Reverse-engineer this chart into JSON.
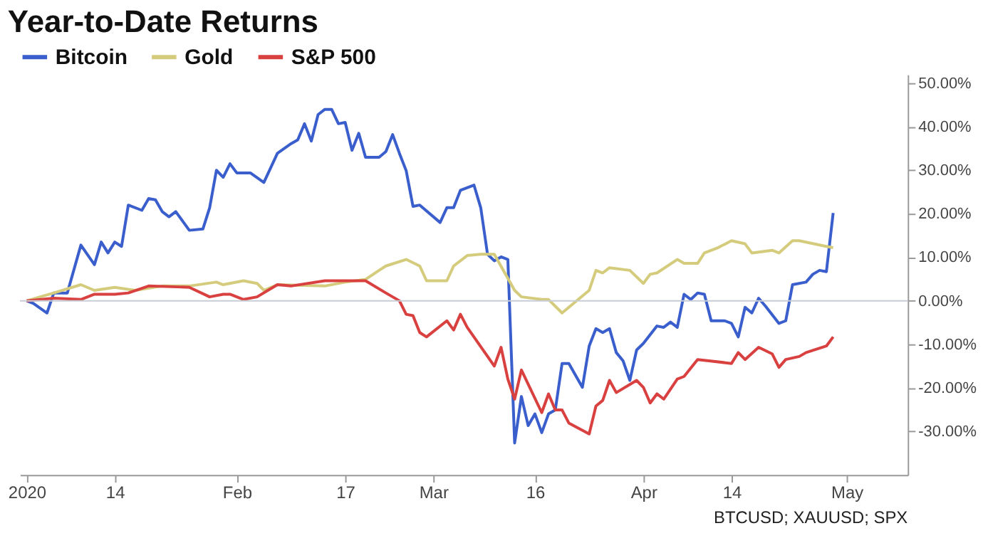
{
  "chart_data": {
    "type": "line",
    "title": "Year-to-Date Returns",
    "legend": "top left",
    "series": [
      {
        "name": "Bitcoin",
        "color": "#3a5fcd",
        "x": [
          "2020-01-01",
          "2020-01-02",
          "2020-01-04",
          "2020-01-05",
          "2020-01-07",
          "2020-01-09",
          "2020-01-11",
          "2020-01-12",
          "2020-01-13",
          "2020-01-14",
          "2020-01-15",
          "2020-01-16",
          "2020-01-18",
          "2020-01-19",
          "2020-01-20",
          "2020-01-21",
          "2020-01-22",
          "2020-01-23",
          "2020-01-25",
          "2020-01-27",
          "2020-01-28",
          "2020-01-29",
          "2020-01-30",
          "2020-01-31",
          "2020-02-01",
          "2020-02-03",
          "2020-02-05",
          "2020-02-07",
          "2020-02-09",
          "2020-02-10",
          "2020-02-11",
          "2020-02-12",
          "2020-02-13",
          "2020-02-14",
          "2020-02-15",
          "2020-02-16",
          "2020-02-17",
          "2020-02-18",
          "2020-02-19",
          "2020-02-20",
          "2020-02-22",
          "2020-02-23",
          "2020-02-24",
          "2020-02-25",
          "2020-02-26",
          "2020-02-27",
          "2020-02-28",
          "2020-03-02",
          "2020-03-03",
          "2020-03-04",
          "2020-03-05",
          "2020-03-07",
          "2020-03-08",
          "2020-03-09",
          "2020-03-10",
          "2020-03-11",
          "2020-03-12",
          "2020-03-13",
          "2020-03-14",
          "2020-03-15",
          "2020-03-16",
          "2020-03-17",
          "2020-03-18",
          "2020-03-19",
          "2020-03-20",
          "2020-03-21",
          "2020-03-23",
          "2020-03-24",
          "2020-03-25",
          "2020-03-26",
          "2020-03-27",
          "2020-03-28",
          "2020-03-29",
          "2020-03-30",
          "2020-03-31",
          "2020-04-01",
          "2020-04-03",
          "2020-04-04",
          "2020-04-05",
          "2020-04-06",
          "2020-04-07",
          "2020-04-08",
          "2020-04-09",
          "2020-04-10",
          "2020-04-11",
          "2020-04-13",
          "2020-04-14",
          "2020-04-15",
          "2020-04-16",
          "2020-04-17",
          "2020-04-18",
          "2020-04-19",
          "2020-04-21",
          "2020-04-22",
          "2020-04-23",
          "2020-04-25",
          "2020-04-26",
          "2020-04-27",
          "2020-04-28",
          "2020-04-29"
        ],
        "values": [
          0,
          -0.6,
          -2.8,
          1.8,
          1.8,
          12.8,
          8.3,
          13.5,
          11.0,
          13.5,
          12.5,
          22.0,
          20.8,
          23.5,
          23.2,
          20.5,
          19.3,
          20.5,
          16.2,
          16.5,
          21.4,
          30.0,
          28.4,
          31.5,
          29.4,
          29.4,
          27.2,
          33.9,
          36.1,
          37.0,
          40.7,
          36.7,
          42.8,
          44.0,
          44.0,
          40.7,
          41.0,
          34.6,
          38.5,
          33.0,
          33.0,
          34.3,
          38.2,
          33.9,
          29.9,
          21.7,
          22.0,
          18.0,
          21.4,
          21.4,
          25.4,
          26.6,
          21.4,
          10.7,
          9.2,
          10.1,
          9.5,
          -32.7,
          -22.0,
          -28.7,
          -26.0,
          -30.3,
          -26.0,
          -25.1,
          -14.4,
          -14.4,
          -19.9,
          -10.4,
          -6.4,
          -7.3,
          -6.4,
          -11.9,
          -13.8,
          -18.3,
          -11.3,
          -9.8,
          -5.8,
          -6.1,
          -4.9,
          -6.1,
          1.5,
          0.3,
          1.8,
          1.5,
          -4.6,
          -4.6,
          -5.2,
          -8.3,
          -1.5,
          -2.8,
          0.6,
          -1.2,
          -5.2,
          -4.6,
          3.7,
          4.3,
          6.1,
          7.0,
          6.7,
          20.2
        ]
      },
      {
        "name": "Gold",
        "color": "#d4cc7c",
        "x": [
          "2020-01-01",
          "2020-01-05",
          "2020-01-09",
          "2020-01-11",
          "2020-01-14",
          "2020-01-17",
          "2020-01-21",
          "2020-01-25",
          "2020-01-29",
          "2020-01-30",
          "2020-02-02",
          "2020-02-04",
          "2020-02-05",
          "2020-02-07",
          "2020-02-14",
          "2020-02-17",
          "2020-02-20",
          "2020-02-22",
          "2020-02-23",
          "2020-02-26",
          "2020-02-28",
          "2020-02-29",
          "2020-03-03",
          "2020-03-04",
          "2020-03-06",
          "2020-03-08",
          "2020-03-10",
          "2020-03-13",
          "2020-03-14",
          "2020-03-17",
          "2020-03-18",
          "2020-03-20",
          "2020-03-21",
          "2020-03-24",
          "2020-03-25",
          "2020-03-26",
          "2020-03-27",
          "2020-03-30",
          "2020-04-01",
          "2020-04-02",
          "2020-04-03",
          "2020-04-06",
          "2020-04-07",
          "2020-04-09",
          "2020-04-10",
          "2020-04-12",
          "2020-04-14",
          "2020-04-16",
          "2020-04-17",
          "2020-04-20",
          "2020-04-21",
          "2020-04-23",
          "2020-04-24",
          "2020-04-28",
          "2020-04-29"
        ],
        "values": [
          0,
          1.8,
          3.7,
          2.4,
          3.1,
          2.4,
          3.4,
          3.4,
          4.3,
          3.7,
          4.6,
          4.0,
          2.4,
          3.7,
          3.4,
          4.3,
          4.9,
          7.0,
          8.0,
          9.5,
          8.0,
          4.6,
          4.6,
          8.0,
          10.4,
          10.7,
          10.7,
          2.4,
          0.9,
          0.3,
          0.3,
          -2.8,
          -1.5,
          2.4,
          7.0,
          6.4,
          7.6,
          7.0,
          4.0,
          6.1,
          6.4,
          9.5,
          8.6,
          8.6,
          11.0,
          12.2,
          13.8,
          13.1,
          11.0,
          11.6,
          11.0,
          13.8,
          13.8,
          12.5,
          12.2
        ]
      },
      {
        "name": "S&P 500",
        "color": "#d94040",
        "x": [
          "2020-01-01",
          "2020-01-05",
          "2020-01-09",
          "2020-01-11",
          "2020-01-14",
          "2020-01-16",
          "2020-01-19",
          "2020-01-25",
          "2020-01-28",
          "2020-01-30",
          "2020-01-31",
          "2020-02-02",
          "2020-02-04",
          "2020-02-07",
          "2020-02-09",
          "2020-02-14",
          "2020-02-17",
          "2020-02-20",
          "2020-02-23",
          "2020-02-25",
          "2020-02-26",
          "2020-02-27",
          "2020-02-28",
          "2020-02-29",
          "2020-03-03",
          "2020-03-04",
          "2020-03-05",
          "2020-03-06",
          "2020-03-10",
          "2020-03-11",
          "2020-03-12",
          "2020-03-13",
          "2020-03-14",
          "2020-03-17",
          "2020-03-18",
          "2020-03-19",
          "2020-03-20",
          "2020-03-21",
          "2020-03-24",
          "2020-03-25",
          "2020-03-26",
          "2020-03-27",
          "2020-03-28",
          "2020-03-31",
          "2020-04-01",
          "2020-04-02",
          "2020-04-03",
          "2020-04-04",
          "2020-04-06",
          "2020-04-07",
          "2020-04-09",
          "2020-04-14",
          "2020-04-15",
          "2020-04-16",
          "2020-04-18",
          "2020-04-20",
          "2020-04-21",
          "2020-04-22",
          "2020-04-24",
          "2020-04-25",
          "2020-04-28",
          "2020-04-29"
        ],
        "values": [
          0,
          0.6,
          0.3,
          1.5,
          1.5,
          1.8,
          3.4,
          3.1,
          0.9,
          1.5,
          1.5,
          0.3,
          0.9,
          3.7,
          3.4,
          4.6,
          4.6,
          4.6,
          1.8,
          0,
          -3.1,
          -3.4,
          -7.3,
          -8.3,
          -4.6,
          -6.7,
          -3.1,
          -6.1,
          -15.0,
          -10.7,
          -18.0,
          -22.6,
          -15.9,
          -25.7,
          -21.4,
          -25.1,
          -25.1,
          -28.1,
          -30.6,
          -24.2,
          -22.9,
          -18.3,
          -21.1,
          -18.3,
          -19.9,
          -23.5,
          -21.4,
          -22.6,
          -18.0,
          -17.4,
          -13.5,
          -14.4,
          -11.9,
          -13.5,
          -10.7,
          -12.2,
          -15.3,
          -13.5,
          -12.8,
          -11.9,
          -10.4,
          -8.3
        ]
      }
    ],
    "xlim": [
      "2019-12-31",
      "2020-05-10"
    ],
    "xticks": [
      {
        "value": "2020-01-01",
        "label": "2020"
      },
      {
        "value": "2020-01-14",
        "label": "14"
      },
      {
        "value": "2020-02-01",
        "label": "Feb"
      },
      {
        "value": "2020-02-17",
        "label": "17"
      },
      {
        "value": "2020-03-01",
        "label": "Mar"
      },
      {
        "value": "2020-03-16",
        "label": "16"
      },
      {
        "value": "2020-04-01",
        "label": "Apr"
      },
      {
        "value": "2020-04-14",
        "label": "14"
      },
      {
        "value": "2020-05-01",
        "label": "May"
      }
    ],
    "ylim": [
      -40,
      52
    ],
    "yticks": [
      {
        "value": 50,
        "label": "50.00%"
      },
      {
        "value": 40,
        "label": "40.00%"
      },
      {
        "value": 30,
        "label": "30.00%"
      },
      {
        "value": 20,
        "label": "20.00%"
      },
      {
        "value": 10,
        "label": "10.00%"
      },
      {
        "value": 0,
        "label": "0.00%"
      },
      {
        "value": -10,
        "label": "-10.00%"
      },
      {
        "value": -20,
        "label": "-20.00%"
      },
      {
        "value": -30,
        "label": "-30.00%"
      }
    ],
    "ref_lines": [
      {
        "axis": "y",
        "value": 0,
        "color": "#c8ccd4"
      }
    ],
    "annotations": [
      "BTCUSD; XAUUSD; SPX"
    ]
  }
}
